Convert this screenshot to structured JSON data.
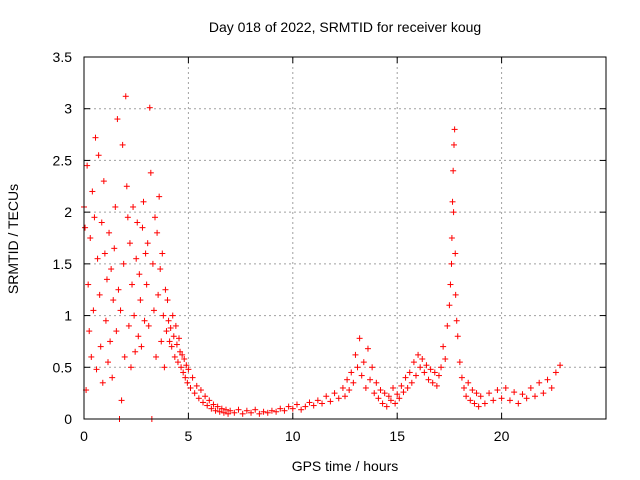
{
  "chart_data": {
    "type": "scatter",
    "title": "Day 018 of 2022, SRMTID for receiver koug",
    "xlabel": "GPS time / hours",
    "ylabel": "SRMTID / TECUs",
    "xlim": [
      0,
      25
    ],
    "ylim": [
      0,
      3.5
    ],
    "xticks": [
      0,
      5,
      10,
      15,
      20
    ],
    "yticks": [
      0,
      0.5,
      1,
      1.5,
      2,
      2.5,
      3,
      3.5
    ],
    "xtick_labels": [
      "0",
      "5",
      "10",
      "15",
      "20"
    ],
    "ytick_labels": [
      "0",
      "0.5",
      "1",
      "1.5",
      "2",
      "2.5",
      "3",
      "3.5"
    ],
    "grid": true,
    "marker": "+",
    "color": "#ff0000",
    "series": [
      {
        "name": "SRMTID",
        "points": [
          [
            0.0,
            2.05
          ],
          [
            0.05,
            1.85
          ],
          [
            0.1,
            0.28
          ],
          [
            0.15,
            2.45
          ],
          [
            0.2,
            1.3
          ],
          [
            0.25,
            0.85
          ],
          [
            0.3,
            1.75
          ],
          [
            0.35,
            0.6
          ],
          [
            0.4,
            2.2
          ],
          [
            0.45,
            1.05
          ],
          [
            0.5,
            1.95
          ],
          [
            0.55,
            2.72
          ],
          [
            0.6,
            0.48
          ],
          [
            0.65,
            1.55
          ],
          [
            0.7,
            2.55
          ],
          [
            0.75,
            1.2
          ],
          [
            0.8,
            0.7
          ],
          [
            0.85,
            1.9
          ],
          [
            0.9,
            0.35
          ],
          [
            0.95,
            2.3
          ],
          [
            1.0,
            1.6
          ],
          [
            1.05,
            0.95
          ],
          [
            1.1,
            1.35
          ],
          [
            1.15,
            0.55
          ],
          [
            1.2,
            1.8
          ],
          [
            1.25,
            0.75
          ],
          [
            1.3,
            1.45
          ],
          [
            1.35,
            0.4
          ],
          [
            1.4,
            1.15
          ],
          [
            1.45,
            1.65
          ],
          [
            1.5,
            2.05
          ],
          [
            1.55,
            0.85
          ],
          [
            1.6,
            2.9
          ],
          [
            1.65,
            1.25
          ],
          [
            1.7,
            0.0
          ],
          [
            1.75,
            1.05
          ],
          [
            1.8,
            0.18
          ],
          [
            1.85,
            2.65
          ],
          [
            1.9,
            1.5
          ],
          [
            1.95,
            0.6
          ],
          [
            2.0,
            3.12
          ],
          [
            2.05,
            2.25
          ],
          [
            2.1,
            1.95
          ],
          [
            2.15,
            0.9
          ],
          [
            2.2,
            1.7
          ],
          [
            2.25,
            0.5
          ],
          [
            2.3,
            1.3
          ],
          [
            2.35,
            2.05
          ],
          [
            2.4,
            1.0
          ],
          [
            2.45,
            0.65
          ],
          [
            2.5,
            1.55
          ],
          [
            2.55,
            1.9
          ],
          [
            2.6,
            0.8
          ],
          [
            2.65,
            1.4
          ],
          [
            2.7,
            1.15
          ],
          [
            2.75,
            0.7
          ],
          [
            2.8,
            1.85
          ],
          [
            2.85,
            2.1
          ],
          [
            2.9,
            0.95
          ],
          [
            2.95,
            1.6
          ],
          [
            3.0,
            1.3
          ],
          [
            3.05,
            1.7
          ],
          [
            3.1,
            0.9
          ],
          [
            3.15,
            3.01
          ],
          [
            3.2,
            2.38
          ],
          [
            3.25,
            0.0
          ],
          [
            3.3,
            1.5
          ],
          [
            3.35,
            1.05
          ],
          [
            3.4,
            1.95
          ],
          [
            3.45,
            0.6
          ],
          [
            3.5,
            1.8
          ],
          [
            3.55,
            1.2
          ],
          [
            3.6,
            2.15
          ],
          [
            3.65,
            1.45
          ],
          [
            3.7,
            0.75
          ],
          [
            3.75,
            1.6
          ],
          [
            3.8,
            1.0
          ],
          [
            3.85,
            0.5
          ],
          [
            3.9,
            1.25
          ],
          [
            3.95,
            0.85
          ],
          [
            4.0,
            1.15
          ],
          [
            4.05,
            0.95
          ],
          [
            4.1,
            0.75
          ],
          [
            4.15,
            0.88
          ],
          [
            4.2,
            0.7
          ],
          [
            4.25,
            1.0
          ],
          [
            4.3,
            0.8
          ],
          [
            4.35,
            0.6
          ],
          [
            4.4,
            0.9
          ],
          [
            4.45,
            0.72
          ],
          [
            4.5,
            0.55
          ],
          [
            4.55,
            0.78
          ],
          [
            4.6,
            0.65
          ],
          [
            4.65,
            0.5
          ],
          [
            4.7,
            0.62
          ],
          [
            4.75,
            0.45
          ],
          [
            4.8,
            0.58
          ],
          [
            4.85,
            0.4
          ],
          [
            4.9,
            0.52
          ],
          [
            4.95,
            0.35
          ],
          [
            5.0,
            0.48
          ],
          [
            5.1,
            0.3
          ],
          [
            5.2,
            0.4
          ],
          [
            5.3,
            0.25
          ],
          [
            5.4,
            0.32
          ],
          [
            5.5,
            0.2
          ],
          [
            5.6,
            0.28
          ],
          [
            5.7,
            0.16
          ],
          [
            5.8,
            0.22
          ],
          [
            5.9,
            0.13
          ],
          [
            6.0,
            0.18
          ],
          [
            6.1,
            0.1
          ],
          [
            6.2,
            0.14
          ],
          [
            6.3,
            0.08
          ],
          [
            6.4,
            0.12
          ],
          [
            6.5,
            0.07
          ],
          [
            6.6,
            0.1
          ],
          [
            6.7,
            0.06
          ],
          [
            6.8,
            0.09
          ],
          [
            6.9,
            0.05
          ],
          [
            7.0,
            0.08
          ],
          [
            7.2,
            0.06
          ],
          [
            7.4,
            0.09
          ],
          [
            7.6,
            0.05
          ],
          [
            7.8,
            0.08
          ],
          [
            8.0,
            0.06
          ],
          [
            8.2,
            0.09
          ],
          [
            8.4,
            0.05
          ],
          [
            8.6,
            0.07
          ],
          [
            8.8,
            0.06
          ],
          [
            9.0,
            0.08
          ],
          [
            9.2,
            0.07
          ],
          [
            9.4,
            0.1
          ],
          [
            9.6,
            0.08
          ],
          [
            9.8,
            0.12
          ],
          [
            10.0,
            0.1
          ],
          [
            10.2,
            0.14
          ],
          [
            10.4,
            0.09
          ],
          [
            10.6,
            0.12
          ],
          [
            10.8,
            0.16
          ],
          [
            11.0,
            0.13
          ],
          [
            11.2,
            0.18
          ],
          [
            11.4,
            0.15
          ],
          [
            11.6,
            0.22
          ],
          [
            11.8,
            0.17
          ],
          [
            12.0,
            0.25
          ],
          [
            12.2,
            0.2
          ],
          [
            12.4,
            0.3
          ],
          [
            12.5,
            0.22
          ],
          [
            12.6,
            0.38
          ],
          [
            12.7,
            0.28
          ],
          [
            12.8,
            0.45
          ],
          [
            12.9,
            0.35
          ],
          [
            13.0,
            0.62
          ],
          [
            13.1,
            0.5
          ],
          [
            13.2,
            0.78
          ],
          [
            13.3,
            0.42
          ],
          [
            13.4,
            0.55
          ],
          [
            13.5,
            0.3
          ],
          [
            13.6,
            0.68
          ],
          [
            13.7,
            0.38
          ],
          [
            13.8,
            0.5
          ],
          [
            13.9,
            0.25
          ],
          [
            14.0,
            0.35
          ],
          [
            14.1,
            0.2
          ],
          [
            14.2,
            0.28
          ],
          [
            14.3,
            0.15
          ],
          [
            14.4,
            0.25
          ],
          [
            14.5,
            0.12
          ],
          [
            14.6,
            0.22
          ],
          [
            14.7,
            0.18
          ],
          [
            14.8,
            0.3
          ],
          [
            14.9,
            0.15
          ],
          [
            15.0,
            0.24
          ],
          [
            15.1,
            0.2
          ],
          [
            15.2,
            0.32
          ],
          [
            15.3,
            0.26
          ],
          [
            15.4,
            0.4
          ],
          [
            15.5,
            0.3
          ],
          [
            15.6,
            0.45
          ],
          [
            15.7,
            0.35
          ],
          [
            15.8,
            0.55
          ],
          [
            15.9,
            0.42
          ],
          [
            16.0,
            0.62
          ],
          [
            16.1,
            0.5
          ],
          [
            16.2,
            0.58
          ],
          [
            16.3,
            0.45
          ],
          [
            16.4,
            0.52
          ],
          [
            16.5,
            0.38
          ],
          [
            16.6,
            0.48
          ],
          [
            16.7,
            0.35
          ],
          [
            16.8,
            0.45
          ],
          [
            16.9,
            0.32
          ],
          [
            17.0,
            0.42
          ],
          [
            17.1,
            0.5
          ],
          [
            17.2,
            0.7
          ],
          [
            17.3,
            0.58
          ],
          [
            17.4,
            0.9
          ],
          [
            17.5,
            1.1
          ],
          [
            17.55,
            1.3
          ],
          [
            17.6,
            1.5
          ],
          [
            17.62,
            1.75
          ],
          [
            17.65,
            2.1
          ],
          [
            17.68,
            2.4
          ],
          [
            17.7,
            2.0
          ],
          [
            17.72,
            2.65
          ],
          [
            17.75,
            2.8
          ],
          [
            17.78,
            1.6
          ],
          [
            17.8,
            1.2
          ],
          [
            17.85,
            0.95
          ],
          [
            17.9,
            0.8
          ],
          [
            18.0,
            0.55
          ],
          [
            18.1,
            0.4
          ],
          [
            18.2,
            0.3
          ],
          [
            18.3,
            0.22
          ],
          [
            18.4,
            0.35
          ],
          [
            18.5,
            0.18
          ],
          [
            18.6,
            0.28
          ],
          [
            18.7,
            0.15
          ],
          [
            18.8,
            0.25
          ],
          [
            18.9,
            0.12
          ],
          [
            19.0,
            0.22
          ],
          [
            19.2,
            0.15
          ],
          [
            19.4,
            0.25
          ],
          [
            19.6,
            0.18
          ],
          [
            19.8,
            0.28
          ],
          [
            20.0,
            0.2
          ],
          [
            20.2,
            0.3
          ],
          [
            20.4,
            0.18
          ],
          [
            20.6,
            0.26
          ],
          [
            20.8,
            0.15
          ],
          [
            21.0,
            0.24
          ],
          [
            21.2,
            0.2
          ],
          [
            21.4,
            0.3
          ],
          [
            21.6,
            0.22
          ],
          [
            21.8,
            0.35
          ],
          [
            22.0,
            0.25
          ],
          [
            22.2,
            0.38
          ],
          [
            22.4,
            0.3
          ],
          [
            22.6,
            0.45
          ],
          [
            22.8,
            0.52
          ]
        ]
      }
    ]
  }
}
